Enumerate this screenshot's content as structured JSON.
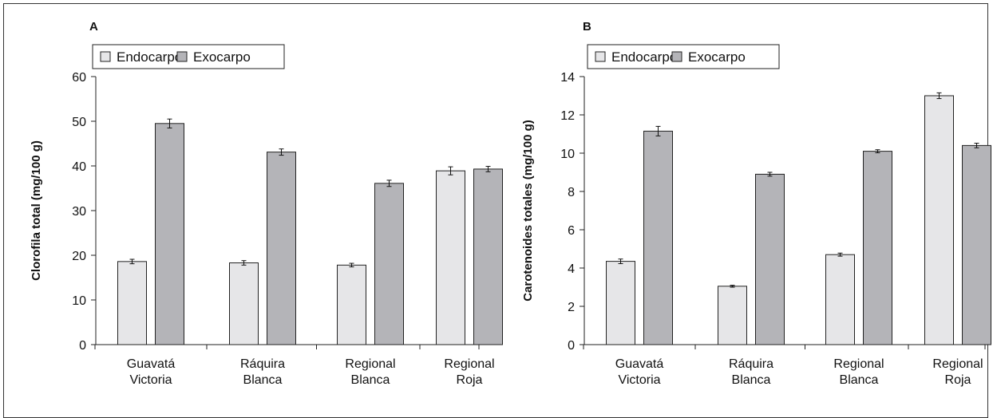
{
  "chart_data": [
    {
      "type": "bar",
      "panel": "A",
      "categories": [
        [
          "Guavatá",
          "Victoria"
        ],
        [
          "Ráquira",
          "Blanca"
        ],
        [
          "Regional",
          "Blanca"
        ],
        [
          "Regional",
          "Roja"
        ]
      ],
      "series": [
        {
          "name": "Endocarpo",
          "values": [
            18.6,
            18.3,
            17.8,
            38.9
          ],
          "errors": [
            0.5,
            0.5,
            0.4,
            0.9
          ],
          "color": "#e6e6e8"
        },
        {
          "name": "Exocarpo",
          "values": [
            49.5,
            43.1,
            36.1,
            39.3
          ],
          "errors": [
            1.0,
            0.7,
            0.7,
            0.6
          ],
          "color": "#b4b4b8"
        }
      ],
      "ylabel": "Clorofila total (mg/100 g)",
      "ylim": [
        0,
        60
      ],
      "yticks": [
        0,
        10,
        20,
        30,
        40,
        50,
        60
      ],
      "legend": "top-left"
    },
    {
      "type": "bar",
      "panel": "B",
      "categories": [
        [
          "Guavatá",
          "Victoria"
        ],
        [
          "Ráquira",
          "Blanca"
        ],
        [
          "Regional",
          "Blanca"
        ],
        [
          "Regional",
          "Roja"
        ]
      ],
      "series": [
        {
          "name": "Endocarpo",
          "values": [
            4.35,
            3.05,
            4.7,
            13.0
          ],
          "errors": [
            0.12,
            0.05,
            0.08,
            0.15
          ],
          "color": "#e6e6e8"
        },
        {
          "name": "Exocarpo",
          "values": [
            11.15,
            8.9,
            10.1,
            10.4
          ],
          "errors": [
            0.25,
            0.1,
            0.08,
            0.12
          ],
          "color": "#b4b4b8"
        }
      ],
      "ylabel": "Carotenoides totales (mg/100 g)",
      "ylim": [
        0,
        14
      ],
      "yticks": [
        0,
        2,
        4,
        6,
        8,
        10,
        12,
        14
      ],
      "legend": "top-left"
    }
  ]
}
